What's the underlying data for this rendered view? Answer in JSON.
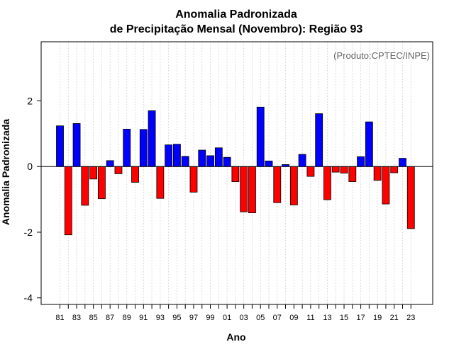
{
  "chart_data": {
    "type": "bar",
    "title_line1": "Anomalia Padronizada",
    "title_line2": "de Precipitação Mensal (Novembro): Região 93",
    "xlabel": "Ano",
    "ylabel": "Anomalia Padronizada",
    "annotation": "(Produto:CPTEC/INPE)",
    "ylim": [
      -4.2,
      3.8
    ],
    "yticks": [
      -4,
      -2,
      0,
      2
    ],
    "ytick_labels": [
      "-4",
      "-2",
      "0",
      "2"
    ],
    "colors": {
      "positive": "#0000ff",
      "negative": "#ff0000",
      "grid": "#d3d3d3"
    },
    "grid": true,
    "categories": [
      "81",
      "82",
      "83",
      "84",
      "85",
      "86",
      "87",
      "88",
      "89",
      "90",
      "91",
      "92",
      "93",
      "94",
      "95",
      "96",
      "97",
      "98",
      "99",
      "00",
      "01",
      "02",
      "03",
      "04",
      "05",
      "06",
      "07",
      "08",
      "09",
      "10",
      "11",
      "12",
      "13",
      "14",
      "15",
      "16",
      "17",
      "18",
      "19",
      "20",
      "21",
      "22",
      "23"
    ],
    "xtick_labels": [
      "81",
      "83",
      "85",
      "87",
      "89",
      "91",
      "93",
      "95",
      "97",
      "99",
      "01",
      "03",
      "05",
      "07",
      "09",
      "11",
      "13",
      "15",
      "17",
      "19",
      "21",
      "23"
    ],
    "values": [
      1.24,
      -2.08,
      1.31,
      -1.18,
      -0.38,
      -0.98,
      0.18,
      -0.22,
      1.14,
      -0.48,
      1.13,
      1.7,
      -0.97,
      0.66,
      0.68,
      0.31,
      -0.78,
      0.5,
      0.33,
      0.57,
      0.28,
      -0.46,
      -1.38,
      -1.41,
      1.81,
      0.17,
      -1.1,
      0.06,
      -1.17,
      0.37,
      -0.3,
      1.61,
      -1.01,
      -0.17,
      -0.2,
      -0.46,
      0.3,
      1.36,
      -0.42,
      -1.14,
      -0.19,
      0.25,
      -1.89
    ]
  }
}
